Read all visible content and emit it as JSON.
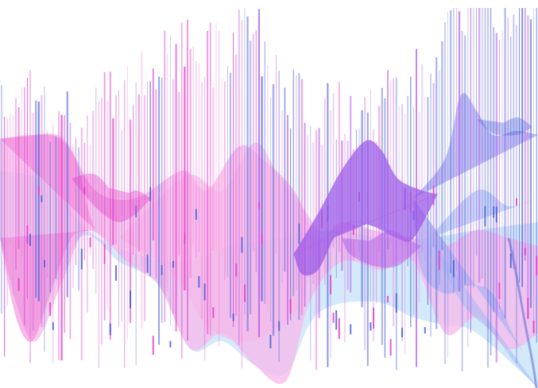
{
  "artwork": {
    "background": "#ffffff",
    "palette": {
      "pink_light": "#f7b8ea",
      "pink_mid": "#f07fd8",
      "magenta": "#e040c8",
      "violet": "#b060e8",
      "purple": "#9a58e6",
      "lavender": "#b8b4f2",
      "periwinkle": "#a6b8f4",
      "blue": "#4a5fd8",
      "sky": "#b0d8f8"
    }
  }
}
